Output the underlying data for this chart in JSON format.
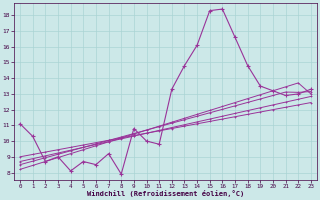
{
  "xlabel": "Windchill (Refroidissement éolien,°C)",
  "background_color": "#cce8e8",
  "line_color": "#993399",
  "grid_color": "#aad4d4",
  "xlim_min": -0.5,
  "xlim_max": 23.5,
  "ylim_min": 7.5,
  "ylim_max": 18.8,
  "xticks": [
    0,
    1,
    2,
    3,
    4,
    5,
    6,
    7,
    8,
    9,
    10,
    11,
    12,
    13,
    14,
    15,
    16,
    17,
    18,
    19,
    20,
    21,
    22,
    23
  ],
  "yticks": [
    8,
    9,
    10,
    11,
    12,
    13,
    14,
    15,
    16,
    17,
    18
  ],
  "main_series": [
    11.1,
    10.3,
    8.7,
    9.0,
    8.1,
    8.7,
    8.5,
    9.2,
    7.9,
    10.8,
    10.0,
    9.8,
    13.3,
    14.8,
    16.1,
    18.3,
    18.4,
    16.6,
    14.8,
    13.5,
    13.2,
    12.9,
    13.0,
    13.3
  ],
  "linear_series": [
    [
      8.2,
      8.45,
      8.7,
      8.95,
      9.2,
      9.45,
      9.7,
      9.95,
      10.2,
      10.45,
      10.7,
      10.95,
      11.2,
      11.45,
      11.7,
      11.95,
      12.2,
      12.45,
      12.7,
      12.95,
      13.2,
      13.45,
      13.7,
      13.0
    ],
    [
      8.5,
      8.72,
      8.94,
      9.16,
      9.38,
      9.6,
      9.82,
      10.04,
      10.26,
      10.48,
      10.7,
      10.92,
      11.14,
      11.36,
      11.58,
      11.8,
      12.02,
      12.24,
      12.46,
      12.68,
      12.9,
      13.12,
      13.1,
      13.15
    ],
    [
      8.7,
      8.88,
      9.06,
      9.24,
      9.42,
      9.6,
      9.78,
      9.96,
      10.14,
      10.32,
      10.5,
      10.68,
      10.86,
      11.04,
      11.22,
      11.4,
      11.58,
      11.76,
      11.94,
      12.12,
      12.3,
      12.48,
      12.66,
      12.84
    ],
    [
      9.0,
      9.15,
      9.3,
      9.45,
      9.6,
      9.75,
      9.9,
      10.05,
      10.2,
      10.35,
      10.5,
      10.65,
      10.8,
      10.95,
      11.1,
      11.25,
      11.4,
      11.55,
      11.7,
      11.85,
      12.0,
      12.15,
      12.3,
      12.45
    ]
  ]
}
